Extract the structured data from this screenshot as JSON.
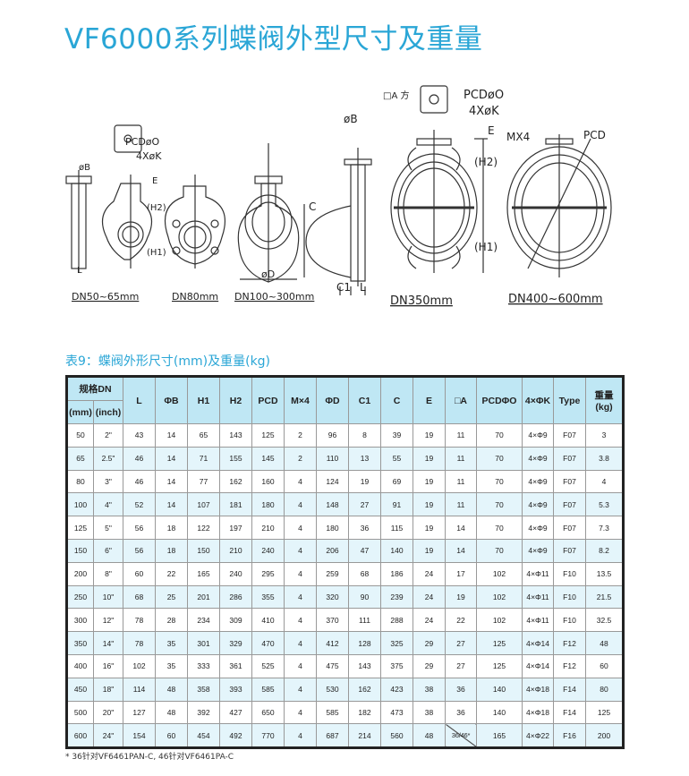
{
  "title": "VF6000系列蝶阀外型尺寸及重量",
  "drawing_labels": {
    "pcd_o": "PCDøO",
    "four_k": "4XøK",
    "sq_a": "□A 方",
    "phi_b": "øB",
    "e": "E",
    "h2": "(H2)",
    "h1": "(H1)",
    "l": "L",
    "phi_d": "øD",
    "c": "C",
    "c1": "C1",
    "mx4": "MX4",
    "pcd": "PCD",
    "dn50_65": "DN50~65mm",
    "dn80": "DN80mm",
    "dn100_300": "DN100~300mm",
    "dn350": "DN350mm",
    "dn400_600": "DN400~600mm"
  },
  "table_caption": "表9：蝶阀外形尺寸(mm)及重量(kg)",
  "table": {
    "group_header": "规格DN",
    "mm": "(mm)",
    "inch": "(inch)",
    "headers": [
      "L",
      "ΦB",
      "H1",
      "H2",
      "PCD",
      "M×4",
      "ΦD",
      "C1",
      "C",
      "E",
      "□A",
      "PCDΦO",
      "4×ΦK",
      "Type"
    ],
    "weight_header": "重量",
    "weight_unit": "(kg)",
    "rows": [
      [
        "50",
        "2\"",
        "43",
        "14",
        "65",
        "143",
        "125",
        "2",
        "96",
        "8",
        "39",
        "19",
        "11",
        "70",
        "4×Φ9",
        "F07",
        "3"
      ],
      [
        "65",
        "2.5\"",
        "46",
        "14",
        "71",
        "155",
        "145",
        "2",
        "110",
        "13",
        "55",
        "19",
        "11",
        "70",
        "4×Φ9",
        "F07",
        "3.8"
      ],
      [
        "80",
        "3\"",
        "46",
        "14",
        "77",
        "162",
        "160",
        "4",
        "124",
        "19",
        "69",
        "19",
        "11",
        "70",
        "4×Φ9",
        "F07",
        "4"
      ],
      [
        "100",
        "4\"",
        "52",
        "14",
        "107",
        "181",
        "180",
        "4",
        "148",
        "27",
        "91",
        "19",
        "11",
        "70",
        "4×Φ9",
        "F07",
        "5.3"
      ],
      [
        "125",
        "5\"",
        "56",
        "18",
        "122",
        "197",
        "210",
        "4",
        "180",
        "36",
        "115",
        "19",
        "14",
        "70",
        "4×Φ9",
        "F07",
        "7.3"
      ],
      [
        "150",
        "6\"",
        "56",
        "18",
        "150",
        "210",
        "240",
        "4",
        "206",
        "47",
        "140",
        "19",
        "14",
        "70",
        "4×Φ9",
        "F07",
        "8.2"
      ],
      [
        "200",
        "8\"",
        "60",
        "22",
        "165",
        "240",
        "295",
        "4",
        "259",
        "68",
        "186",
        "24",
        "17",
        "102",
        "4×Φ11",
        "F10",
        "13.5"
      ],
      [
        "250",
        "10\"",
        "68",
        "25",
        "201",
        "286",
        "355",
        "4",
        "320",
        "90",
        "239",
        "24",
        "19",
        "102",
        "4×Φ11",
        "F10",
        "21.5"
      ],
      [
        "300",
        "12\"",
        "78",
        "28",
        "234",
        "309",
        "410",
        "4",
        "370",
        "111",
        "288",
        "24",
        "22",
        "102",
        "4×Φ11",
        "F10",
        "32.5"
      ],
      [
        "350",
        "14\"",
        "78",
        "35",
        "301",
        "329",
        "470",
        "4",
        "412",
        "128",
        "325",
        "29",
        "27",
        "125",
        "4×Φ14",
        "F12",
        "48"
      ],
      [
        "400",
        "16\"",
        "102",
        "35",
        "333",
        "361",
        "525",
        "4",
        "475",
        "143",
        "375",
        "29",
        "27",
        "125",
        "4×Φ14",
        "F12",
        "60"
      ],
      [
        "450",
        "18\"",
        "114",
        "48",
        "358",
        "393",
        "585",
        "4",
        "530",
        "162",
        "423",
        "38",
        "36",
        "140",
        "4×Φ18",
        "F14",
        "80"
      ],
      [
        "500",
        "20\"",
        "127",
        "48",
        "392",
        "427",
        "650",
        "4",
        "585",
        "182",
        "473",
        "38",
        "36",
        "140",
        "4×Φ18",
        "F14",
        "125"
      ],
      [
        "600",
        "24\"",
        "154",
        "60",
        "454",
        "492",
        "770",
        "4",
        "687",
        "214",
        "560",
        "48",
        "36/46*",
        "165",
        "4×Φ22",
        "F16",
        "200"
      ]
    ],
    "split_cell": {
      "top": "36",
      "bottom": "46",
      "mark": "*"
    }
  },
  "footnote": "*  36针对VF6461PAN-C, 46针对VF6461PA-C",
  "colors": {
    "accent": "#2aa6d6",
    "header_bg": "#bfe7f4",
    "alt_row_bg": "#e4f5fb"
  }
}
